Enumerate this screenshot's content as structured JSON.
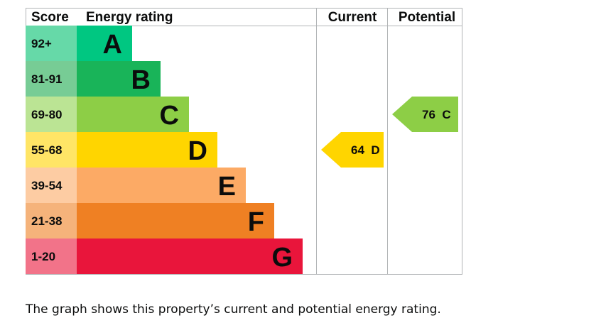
{
  "chart_data": {
    "type": "epc-rating",
    "headers": {
      "score": "Score",
      "rating": "Energy rating",
      "current": "Current",
      "potential": "Potential"
    },
    "bands": [
      {
        "score": "92+",
        "letter": "A",
        "color": "#00c781",
        "score_bg": "#66d9a8"
      },
      {
        "score": "81-91",
        "letter": "B",
        "color": "#19b459",
        "score_bg": "#77cc95"
      },
      {
        "score": "69-80",
        "letter": "C",
        "color": "#8dce46",
        "score_bg": "#bbe494"
      },
      {
        "score": "55-68",
        "letter": "D",
        "color": "#ffd500",
        "score_bg": "#ffe566"
      },
      {
        "score": "39-54",
        "letter": "E",
        "color": "#fcaa65",
        "score_bg": "#fdcca3"
      },
      {
        "score": "21-38",
        "letter": "F",
        "color": "#ef8023",
        "score_bg": "#f5b37b"
      },
      {
        "score": "1-20",
        "letter": "G",
        "color": "#e9153b",
        "score_bg": "#f27389"
      }
    ],
    "current": {
      "value": 64,
      "letter": "D",
      "label": "64  D",
      "color": "#ffd500"
    },
    "potential": {
      "value": 76,
      "letter": "C",
      "label": "76  C",
      "color": "#8dce46"
    }
  },
  "caption": "The graph shows this property’s current and potential energy rating."
}
